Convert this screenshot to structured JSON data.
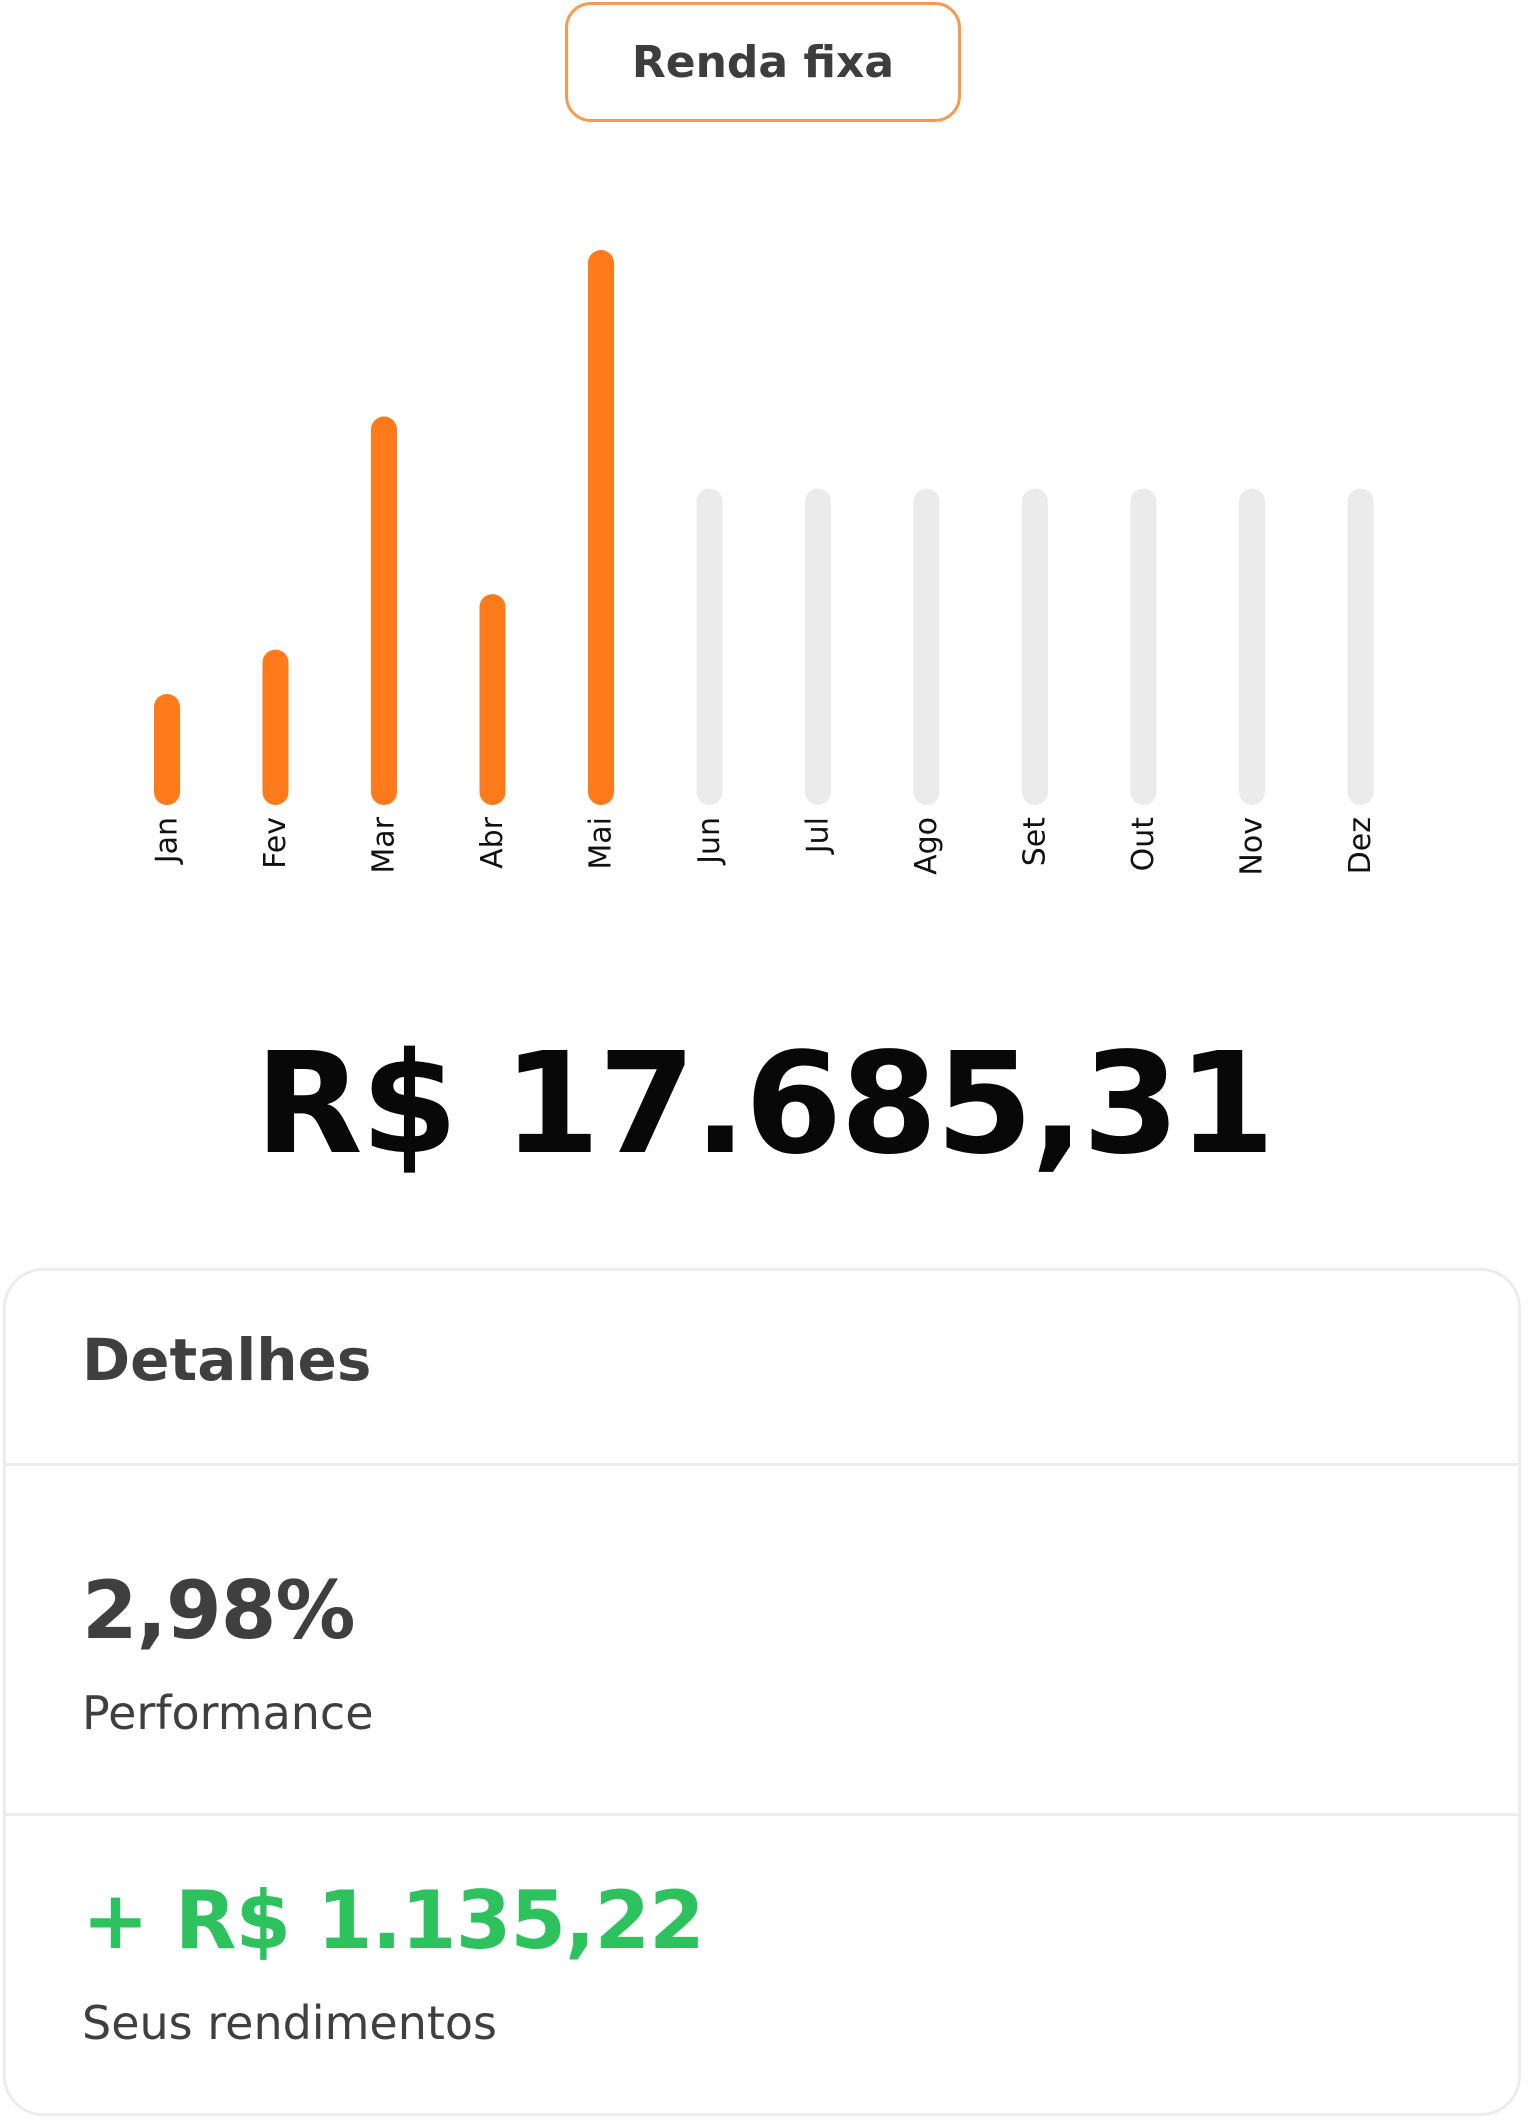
{
  "tab": {
    "label": "Renda fixa"
  },
  "chart_data": {
    "type": "bar",
    "categories": [
      "Jan",
      "Fev",
      "Mar",
      "Abr",
      "Mai",
      "Jun",
      "Jul",
      "Ago",
      "Set",
      "Out",
      "Nov",
      "Dez"
    ],
    "values": [
      100,
      140,
      350,
      190,
      500,
      null,
      null,
      null,
      null,
      null,
      null,
      null
    ],
    "placeholder_value": 285,
    "ylim": [
      0,
      500
    ],
    "active_color": "#ff7a1a",
    "placeholder_color": "#ebebeb",
    "title": "",
    "xlabel": "",
    "ylabel": "",
    "grid": false
  },
  "total": {
    "amount": "R$ 17.685,31"
  },
  "details": {
    "title": "Detalhes",
    "performance": {
      "value": "2,98%",
      "label": "Performance"
    },
    "earnings": {
      "value": "+ R$ 1.135,22",
      "label": "Seus rendimentos",
      "color": "#2ec25e"
    }
  }
}
